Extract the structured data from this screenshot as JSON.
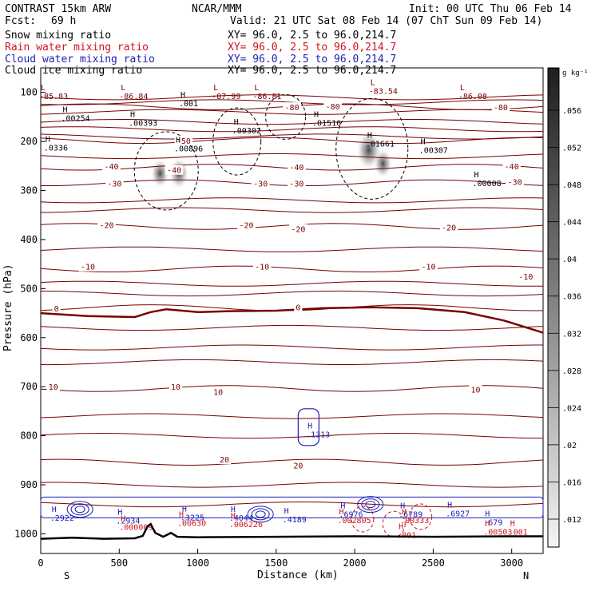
{
  "header": {
    "title_left": "CONTRAST 15km ARW",
    "title_center": "NCAR/MMM",
    "init": "Init: 00 UTC Thu 06 Feb 14",
    "fcst_label": "Fcst:",
    "fcst_value": "69 h",
    "valid": "Valid: 21 UTC Sat 08 Feb 14 (07 ChT Sun 09 Feb 14)"
  },
  "legend": [
    {
      "label": "Snow mixing ratio",
      "xy": "XY=  96.0,  2.5 to  96.0,214.7",
      "color": "#000000"
    },
    {
      "label": "Rain water mixing ratio",
      "xy": "XY=  96.0,  2.5 to  96.0,214.7",
      "color": "#d0141e"
    },
    {
      "label": "Cloud water mixing ratio",
      "xy": "XY=  96.0,  2.5 to  96.0,214.7",
      "color": "#1e1eb4"
    },
    {
      "label": "Cloud ice mixing ratio",
      "xy": "XY=  96.0,  2.5 to  96.0,214.7",
      "color": "#000000"
    }
  ],
  "colorbar": {
    "unit": "g kg⁻¹",
    "ticks": [
      ".056",
      ".052",
      ".048",
      ".044",
      ".04",
      ".036",
      ".032",
      ".028",
      ".024",
      ".02",
      ".016",
      ".012"
    ]
  },
  "chart_data": {
    "type": "contour cross-section",
    "xlabel": "Distance (km)",
    "ylabel": "Pressure (hPa)",
    "xlim": [
      0,
      3200
    ],
    "ylim": [
      1040,
      50
    ],
    "x_ticks": [
      0,
      500,
      1000,
      1500,
      2000,
      2500,
      3000
    ],
    "y_ticks": [
      100,
      200,
      300,
      400,
      500,
      600,
      700,
      800,
      900,
      1000
    ],
    "end_labels": {
      "left": "S",
      "right": "N"
    },
    "temperature_contours": [
      {
        "label": "-80",
        "x": 1600,
        "p": 130
      },
      {
        "label": "-80",
        "x": 1860,
        "p": 128
      },
      {
        "label": "-80",
        "x": 2930,
        "p": 130
      },
      {
        "label": "-50",
        "x": 910,
        "p": 198
      },
      {
        "label": "-40",
        "x": 450,
        "p": 250
      },
      {
        "label": "-40",
        "x": 850,
        "p": 258
      },
      {
        "label": "-40",
        "x": 1630,
        "p": 252
      },
      {
        "label": "-40",
        "x": 3000,
        "p": 250
      },
      {
        "label": "-30",
        "x": 470,
        "p": 285
      },
      {
        "label": "-30",
        "x": 1400,
        "p": 285
      },
      {
        "label": "-30",
        "x": 1630,
        "p": 285
      },
      {
        "label": "-30",
        "x": 3020,
        "p": 282
      },
      {
        "label": "-20",
        "x": 420,
        "p": 370
      },
      {
        "label": "-20",
        "x": 1310,
        "p": 370
      },
      {
        "label": "-20",
        "x": 1640,
        "p": 378
      },
      {
        "label": "-20",
        "x": 2600,
        "p": 375
      },
      {
        "label": "-10",
        "x": 300,
        "p": 455
      },
      {
        "label": "-10",
        "x": 1410,
        "p": 455
      },
      {
        "label": "-10",
        "x": 2470,
        "p": 455
      },
      {
        "label": "-10",
        "x": 3090,
        "p": 475
      },
      {
        "label": "0",
        "x": 100,
        "p": 540
      },
      {
        "label": "0",
        "x": 1640,
        "p": 538
      },
      {
        "label": "10",
        "x": 80,
        "p": 700
      },
      {
        "label": "10",
        "x": 860,
        "p": 700
      },
      {
        "label": "10",
        "x": 1130,
        "p": 710
      },
      {
        "label": "10",
        "x": 2770,
        "p": 705
      },
      {
        "label": "20",
        "x": 1170,
        "p": 848
      },
      {
        "label": "20",
        "x": 1640,
        "p": 860
      }
    ],
    "extrema_labels": [
      {
        "kind": "L",
        "value": "-85.83",
        "x": 0,
        "p": 105
      },
      {
        "kind": "L",
        "value": "-86.84",
        "x": 510,
        "p": 105
      },
      {
        "kind": "L",
        "value": "-87.99",
        "x": 1100,
        "p": 105
      },
      {
        "kind": "L",
        "value": "-86.81",
        "x": 1360,
        "p": 105
      },
      {
        "kind": "L",
        "value": "-83.54",
        "x": 2100,
        "p": 95
      },
      {
        "kind": "L",
        "value": "-86.08",
        "x": 2670,
        "p": 105
      },
      {
        "kind": "H",
        "value": ".001",
        "x": 890,
        "p": 120
      },
      {
        "kind": "H",
        "value": ".00254",
        "x": 140,
        "p": 150
      },
      {
        "kind": "H",
        "value": ".00393",
        "x": 570,
        "p": 160
      },
      {
        "kind": "H",
        "value": ".00302",
        "x": 1230,
        "p": 175
      },
      {
        "kind": "H",
        "value": ".01516",
        "x": 1740,
        "p": 160
      },
      {
        "kind": "H",
        "value": ".00896",
        "x": 860,
        "p": 212
      },
      {
        "kind": "H",
        "value": ".0336",
        "x": 30,
        "p": 210
      },
      {
        "kind": "H",
        "value": ".01661",
        "x": 2080,
        "p": 202
      },
      {
        "kind": "H",
        "value": ".00307",
        "x": 2420,
        "p": 215
      },
      {
        "kind": "H",
        "value": ".00008",
        "x": 2760,
        "p": 283
      },
      {
        "kind": "H",
        "value": ".1313",
        "x": 1700,
        "p": 795
      },
      {
        "kind": "H",
        "value": ".2922",
        "x": 70,
        "p": 965
      },
      {
        "kind": "H",
        "value": ".2934",
        "x": 490,
        "p": 971
      },
      {
        "kind": "H",
        "value": ".000009",
        "x": 510,
        "p": 984
      },
      {
        "kind": "H",
        "value": ".3225",
        "x": 900,
        "p": 964
      },
      {
        "kind": "H",
        "value": ".00630",
        "x": 880,
        "p": 976
      },
      {
        "kind": "H",
        "value": ".4044",
        "x": 1210,
        "p": 965
      },
      {
        "kind": "H",
        "value": ".006226",
        "x": 1210,
        "p": 978
      },
      {
        "kind": "H",
        "value": ".4189",
        "x": 1550,
        "p": 968
      },
      {
        "kind": "H",
        "value": ".6976",
        "x": 1910,
        "p": 958
      },
      {
        "kind": "H",
        "value": ".002805",
        "x": 1900,
        "p": 970
      },
      {
        "kind": "H",
        "value": ".6789",
        "x": 2290,
        "p": 958
      },
      {
        "kind": "H",
        "value": ".00333",
        "x": 2300,
        "p": 970
      },
      {
        "kind": "H",
        "value": ".6927",
        "x": 2590,
        "p": 956
      },
      {
        "kind": "H",
        "value": ".679",
        "x": 2830,
        "p": 974
      },
      {
        "kind": "H",
        "value": ".001",
        "x": 2990,
        "p": 994
      },
      {
        "kind": "H",
        "value": ".00503",
        "x": 2830,
        "p": 994
      },
      {
        "kind": "H",
        "value": ".001",
        "x": 2280,
        "p": 1000
      }
    ],
    "ice_maxima": [
      {
        "x": 760,
        "p": 265,
        "value": 0.03
      },
      {
        "x": 880,
        "p": 265,
        "value": 0.035
      },
      {
        "x": 2090,
        "p": 218,
        "value": 0.058
      },
      {
        "x": 2180,
        "p": 245,
        "value": 0.03
      }
    ],
    "freezing_level": [
      {
        "x": 0,
        "p": 550
      },
      {
        "x": 300,
        "p": 556
      },
      {
        "x": 600,
        "p": 558
      },
      {
        "x": 700,
        "p": 548
      },
      {
        "x": 800,
        "p": 542
      },
      {
        "x": 1000,
        "p": 548
      },
      {
        "x": 1200,
        "p": 546
      },
      {
        "x": 1500,
        "p": 545
      },
      {
        "x": 1800,
        "p": 540
      },
      {
        "x": 2100,
        "p": 538
      },
      {
        "x": 2400,
        "p": 540
      },
      {
        "x": 2700,
        "p": 548
      },
      {
        "x": 2950,
        "p": 565
      },
      {
        "x": 3200,
        "p": 590
      }
    ],
    "terrain": [
      {
        "x": 0,
        "p": 1010
      },
      {
        "x": 200,
        "p": 1008
      },
      {
        "x": 400,
        "p": 1010
      },
      {
        "x": 600,
        "p": 1009
      },
      {
        "x": 650,
        "p": 1004
      },
      {
        "x": 680,
        "p": 985
      },
      {
        "x": 700,
        "p": 980
      },
      {
        "x": 730,
        "p": 998
      },
      {
        "x": 780,
        "p": 1006
      },
      {
        "x": 830,
        "p": 998
      },
      {
        "x": 870,
        "p": 1006
      },
      {
        "x": 1000,
        "p": 1007
      },
      {
        "x": 1500,
        "p": 1006
      },
      {
        "x": 2000,
        "p": 1005
      },
      {
        "x": 2500,
        "p": 1006
      },
      {
        "x": 3000,
        "p": 1005
      },
      {
        "x": 3200,
        "p": 1005
      }
    ]
  }
}
